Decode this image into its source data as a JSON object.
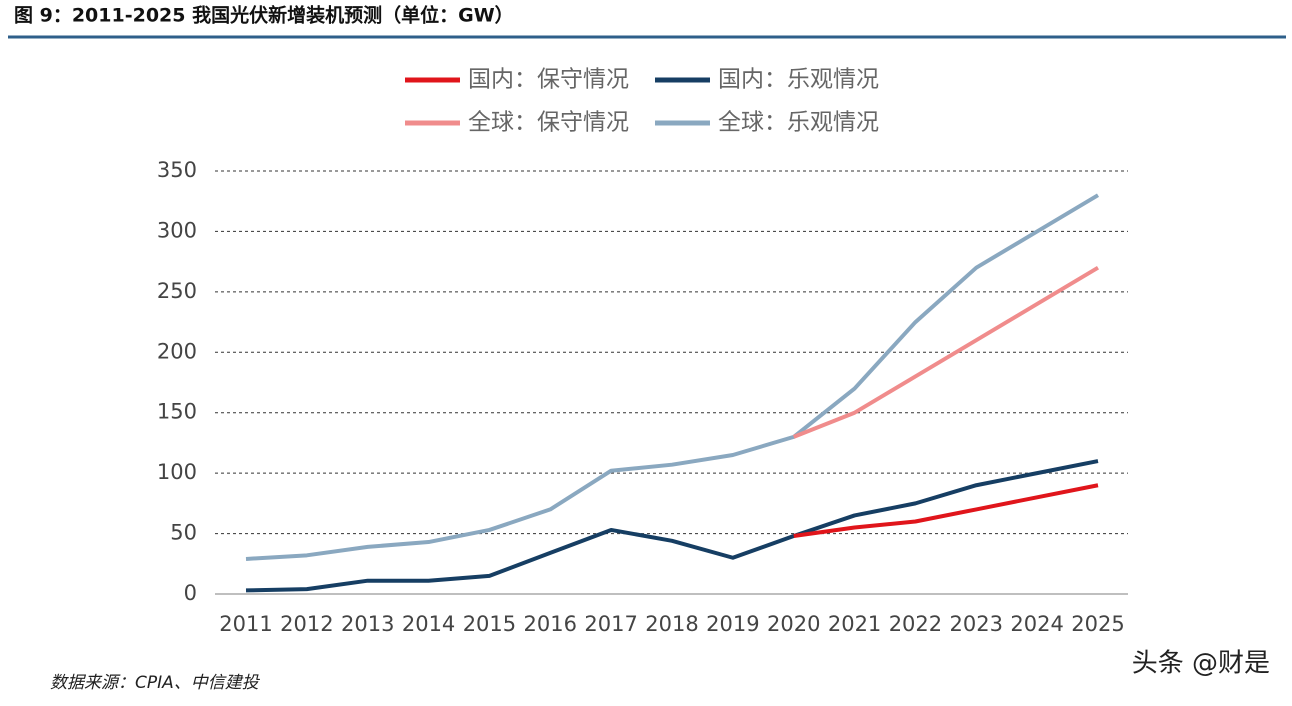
{
  "header": {
    "title": "图 9：2011-2025 我国光伏新增装机预测（单位：GW）"
  },
  "chart_data": {
    "type": "line",
    "categories": [
      "2011",
      "2012",
      "2013",
      "2014",
      "2015",
      "2016",
      "2017",
      "2018",
      "2019",
      "2020",
      "2021",
      "2022",
      "2023",
      "2024",
      "2025"
    ],
    "series": [
      {
        "name": "全球：乐观情况",
        "color": "#8aa8c0",
        "values": [
          29,
          32,
          39,
          43,
          53,
          70,
          102,
          107,
          115,
          130,
          170,
          225,
          270,
          300,
          330
        ]
      },
      {
        "name": "全球：保守情况",
        "color": "#f08c8c",
        "values": [
          null,
          null,
          null,
          null,
          null,
          null,
          null,
          null,
          null,
          130,
          150,
          180,
          210,
          240,
          270
        ]
      },
      {
        "name": "国内：乐观情况",
        "color": "#163e63",
        "values": [
          3,
          4,
          11,
          11,
          15,
          34,
          53,
          44,
          30,
          48,
          65,
          75,
          90,
          100,
          110
        ]
      },
      {
        "name": "国内：保守情况",
        "color": "#e0151b",
        "values": [
          null,
          null,
          null,
          null,
          null,
          null,
          null,
          null,
          null,
          48,
          55,
          60,
          70,
          80,
          90
        ]
      }
    ],
    "ylim": [
      0,
      350
    ],
    "yticks": [
      0,
      50,
      100,
      150,
      200,
      250,
      300,
      350
    ],
    "grid": true
  },
  "footer": {
    "source": "数据来源：CPIA、中信建投",
    "watermark": "头条 @财是"
  }
}
